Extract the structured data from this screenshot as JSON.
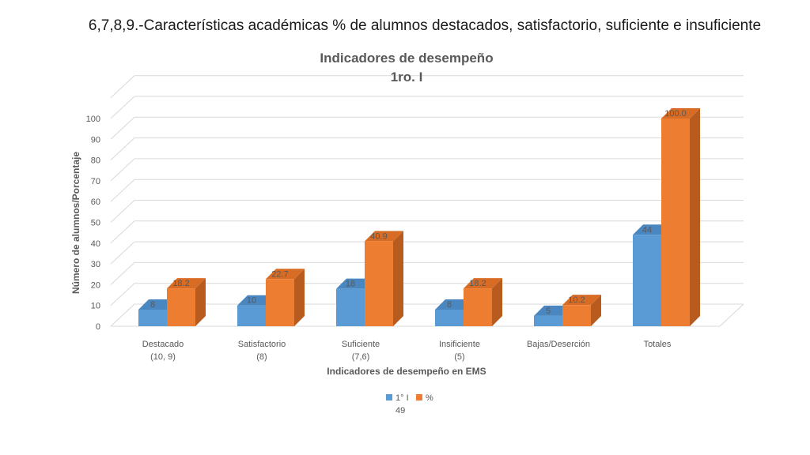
{
  "slide_title": "6,7,8,9.-Características académicas % de alumnos destacados, satisfactorio, suficiente e insuficiente",
  "colors": {
    "series1": "#5b9bd5",
    "series1_top": "#4a86c0",
    "series2": "#ed7d31",
    "series2_side": "#b75c1e",
    "series2_top": "#d86c24",
    "grid": "#d9d9d9",
    "text": "#595959"
  },
  "chart_data": {
    "type": "bar",
    "style": "3d-clustered-column",
    "title": "Indicadores de desempeño",
    "subtitle": "1ro. I",
    "xlabel": "Indicadores de desempeño en EMS",
    "ylabel": "Número de alumnos/Porcentaje",
    "ylim": [
      0,
      100
    ],
    "yticks": [
      0,
      10,
      20,
      30,
      40,
      50,
      60,
      70,
      80,
      90,
      100
    ],
    "grid": true,
    "legend_position": "bottom",
    "categories": [
      [
        "Destacado",
        "(10, 9)"
      ],
      [
        "Satisfactorio",
        "(8)"
      ],
      [
        "Suficiente",
        "(7,6)"
      ],
      [
        "Insificiente",
        "(5)"
      ],
      [
        "Bajas/Deserción"
      ],
      [
        "Totales"
      ]
    ],
    "series": [
      {
        "name": "1° I",
        "values": [
          8,
          10,
          18,
          8,
          5,
          44
        ],
        "labels": [
          "8",
          "10",
          "18",
          "8",
          "5",
          "44"
        ]
      },
      {
        "name": "%",
        "values": [
          18.2,
          22.7,
          40.9,
          18.2,
          10.2,
          100.0
        ],
        "labels": [
          "18.2",
          "22.7",
          "40.9",
          "18.2",
          "10.2",
          "100.0"
        ]
      }
    ],
    "legend_extra": "49"
  }
}
